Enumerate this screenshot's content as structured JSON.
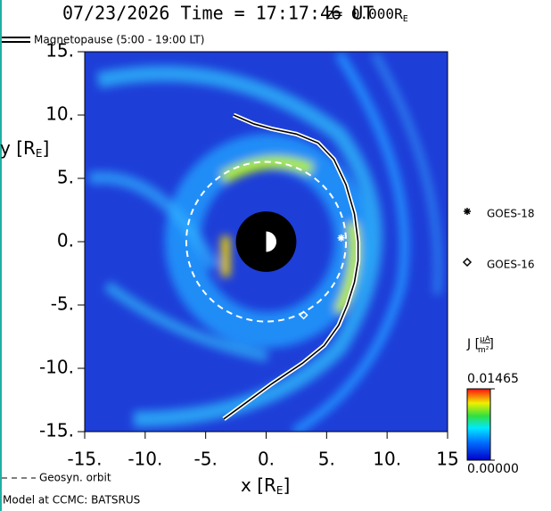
{
  "chart_data": {
    "type": "field-map",
    "title": "07/23/2026 Time = 17:17:46 UT",
    "z_label": "z= 0.000R",
    "z_sub": "E",
    "x_label": "x [R",
    "x_sub": "E",
    "x_end": "]",
    "y_label": "y [R",
    "y_sub": "E",
    "y_end": "]",
    "xlim": [
      -15,
      15
    ],
    "ylim": [
      -15,
      15
    ],
    "xticks": [
      {
        "value": -15,
        "label": "-15."
      },
      {
        "value": -10,
        "label": "-10."
      },
      {
        "value": -5,
        "label": "-5."
      },
      {
        "value": 0,
        "label": "0."
      },
      {
        "value": 5,
        "label": "5."
      },
      {
        "value": 10,
        "label": "10."
      },
      {
        "value": 15,
        "label": "15"
      }
    ],
    "yticks": [
      {
        "value": -15,
        "label": "-15."
      },
      {
        "value": -10,
        "label": "-10."
      },
      {
        "value": -5,
        "label": "-5."
      },
      {
        "value": 0,
        "label": "0."
      },
      {
        "value": 5,
        "label": "5."
      },
      {
        "value": 10,
        "label": "10."
      },
      {
        "value": 15,
        "label": "15."
      }
    ],
    "magnetopause": {
      "name": "Magnetopause (5:00 - 19:00 LT)",
      "x": [
        -2.7,
        -1,
        0.5,
        2.5,
        4.3,
        5.6,
        6.6,
        7.3,
        7.6,
        7.6,
        7.3,
        6.7,
        6.0,
        4.8,
        3.0,
        0.5,
        -1.5,
        -3.5
      ],
      "y": [
        10.0,
        9.3,
        8.9,
        8.5,
        7.8,
        6.5,
        4.5,
        2.2,
        0,
        -1.5,
        -3.2,
        -5.0,
        -6.6,
        -8.2,
        -9.6,
        -11.2,
        -12.6,
        -14.0
      ]
    },
    "geosync_label": "Geosyn. orbit",
    "satellites": [
      {
        "name": "GOES-18",
        "x": 6.2,
        "y": 0.3
      },
      {
        "name": "GOES-16",
        "x": 3.1,
        "y": -5.8
      }
    ],
    "colorbar": {
      "label": "J [",
      "unit_num": "μA",
      "unit_den": "m²",
      "label_end": "]",
      "lim": [
        0,
        0.01465
      ],
      "ticks": [
        {
          "value": 0,
          "label": "0.00000"
        },
        {
          "value": 0.01465,
          "label": "0.01465"
        }
      ]
    },
    "footer": "Model at CCMC: BATSRUS"
  }
}
